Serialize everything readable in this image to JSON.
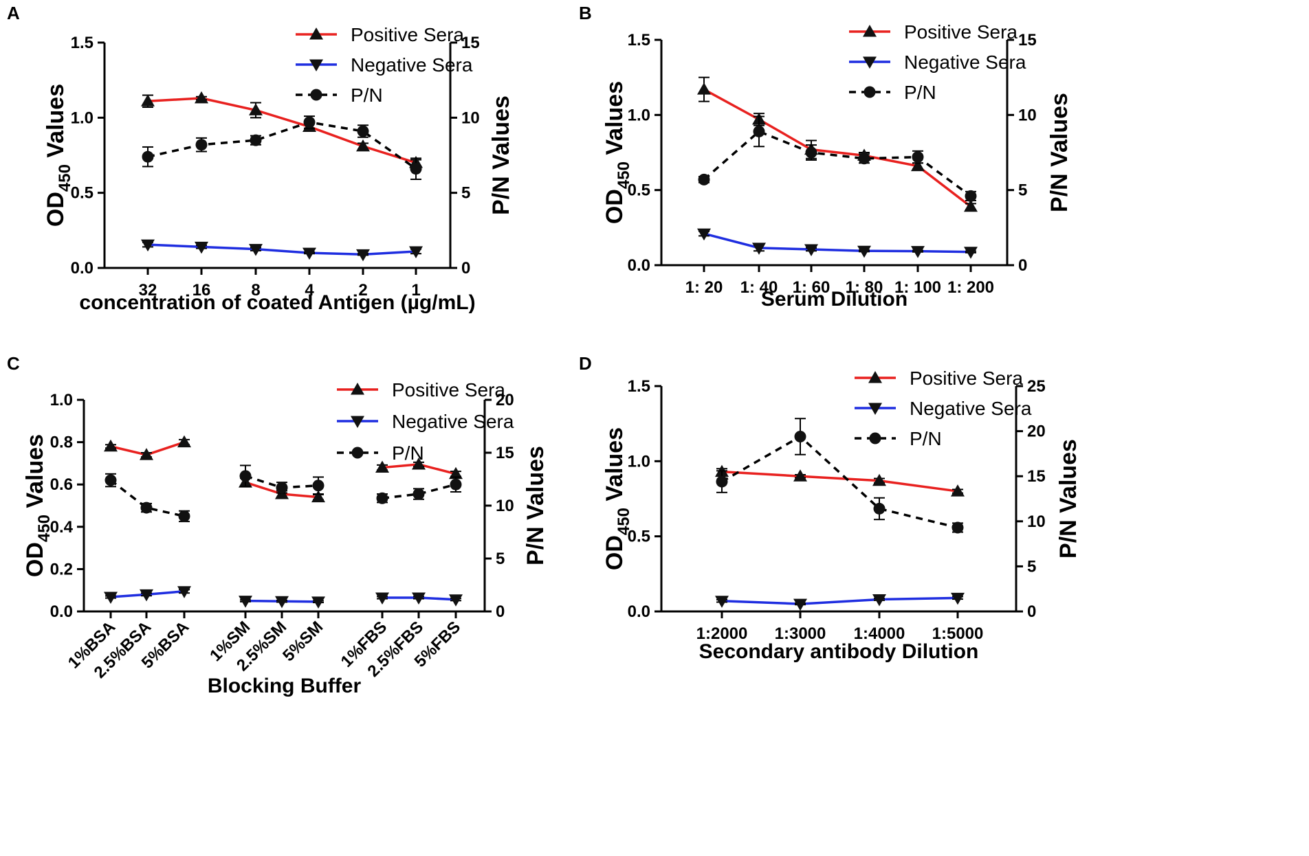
{
  "chart_data": [
    {
      "panel": "A",
      "type": "line",
      "categories": [
        "32",
        "16",
        "8",
        "4",
        "2",
        "1"
      ],
      "xlabel": "concentration of coated Antigen (µg/mL)",
      "ylabel_main": "OD",
      "ylabel_sub": "450",
      "ylabel_suffix": " Values",
      "y2label": "P/N Values",
      "ylim": [
        0,
        1.5
      ],
      "yticks": [
        "0.0",
        "0.5",
        "1.0",
        "1.5"
      ],
      "ytick_values": [
        0,
        0.5,
        1.0,
        1.5
      ],
      "y2lim": [
        0,
        15
      ],
      "y2ticks": [
        "0",
        "5",
        "10",
        "15"
      ],
      "y2tick_values": [
        0,
        5,
        10,
        15
      ],
      "legend_loc": "top-right",
      "series": [
        {
          "name": "Positive Sera",
          "axis": "left",
          "color": "#e8211f",
          "marker": "triangle-up",
          "dashed": false,
          "values": [
            1.11,
            1.13,
            1.05,
            0.94,
            0.81,
            0.7
          ],
          "errors": [
            0.04,
            0.01,
            0.05,
            0.02,
            0.02,
            0.02
          ]
        },
        {
          "name": "Negative Sera",
          "axis": "left",
          "color": "#1f2ee0",
          "marker": "triangle-down",
          "dashed": false,
          "values": [
            0.155,
            0.14,
            0.125,
            0.1,
            0.09,
            0.11
          ],
          "errors": [
            0.015,
            0.01,
            0.01,
            0.005,
            0.005,
            0.015
          ]
        },
        {
          "name": "P/N",
          "axis": "right",
          "color": "#000000",
          "marker": "circle",
          "dashed": true,
          "values": [
            7.4,
            8.2,
            8.5,
            9.7,
            9.1,
            6.6
          ],
          "errors": [
            0.65,
            0.45,
            0.3,
            0.4,
            0.4,
            0.7
          ]
        }
      ]
    },
    {
      "panel": "B",
      "type": "line",
      "categories": [
        "1: 20",
        "1: 40",
        "1: 60",
        "1: 80",
        "1: 100",
        "1: 200"
      ],
      "xlabel": "Serum Dilution",
      "ylabel_main": "OD",
      "ylabel_sub": "450",
      "ylabel_suffix": " Values",
      "y2label": "P/N Values",
      "ylim": [
        0,
        1.5
      ],
      "yticks": [
        "0.0",
        "0.5",
        "1.0",
        "1.5"
      ],
      "ytick_values": [
        0,
        0.5,
        1.0,
        1.5
      ],
      "y2lim": [
        0,
        15
      ],
      "y2ticks": [
        "0",
        "5",
        "10",
        "15"
      ],
      "y2tick_values": [
        0,
        5,
        10,
        15
      ],
      "legend_loc": "top-right",
      "series": [
        {
          "name": "Positive Sera",
          "axis": "left",
          "color": "#e8211f",
          "marker": "triangle-up",
          "dashed": false,
          "values": [
            1.17,
            0.97,
            0.77,
            0.73,
            0.66,
            0.39
          ],
          "errors": [
            0.08,
            0.04,
            0.06,
            0.02,
            0.02,
            0.02
          ]
        },
        {
          "name": "Negative Sera",
          "axis": "left",
          "color": "#1f2ee0",
          "marker": "triangle-down",
          "dashed": false,
          "values": [
            0.21,
            0.115,
            0.105,
            0.095,
            0.093,
            0.088
          ],
          "errors": [
            0.015,
            0.02,
            0.01,
            0.005,
            0.005,
            0.005
          ]
        },
        {
          "name": "P/N",
          "axis": "right",
          "color": "#000000",
          "marker": "circle",
          "dashed": true,
          "values": [
            5.7,
            8.9,
            7.5,
            7.1,
            7.2,
            4.6
          ],
          "errors": [
            0.2,
            1.0,
            0.5,
            0.3,
            0.4,
            0.3
          ]
        }
      ]
    },
    {
      "panel": "C",
      "type": "line",
      "categories": [
        "1%BSA",
        "2.5%BSA",
        "5%BSA",
        "1%SM",
        "2.5%SM",
        "5%SM",
        "1%FBS",
        "2.5%FBS",
        "5%FBS"
      ],
      "groups": [
        [
          0,
          1,
          2
        ],
        [
          3,
          4,
          5
        ],
        [
          6,
          7,
          8
        ]
      ],
      "xlabel": "Blocking Buffer",
      "ylabel_main": "OD",
      "ylabel_sub": "450",
      "ylabel_suffix": " Values",
      "y2label": "P/N Values",
      "ylim": [
        0,
        1.0
      ],
      "yticks": [
        "0.0",
        "0.2",
        "0.4",
        "0.6",
        "0.8",
        "1.0"
      ],
      "ytick_values": [
        0,
        0.2,
        0.4,
        0.6,
        0.8,
        1.0
      ],
      "y2lim": [
        0,
        20
      ],
      "y2ticks": [
        "0",
        "5",
        "10",
        "15",
        "20"
      ],
      "y2tick_values": [
        0,
        5,
        10,
        15,
        20
      ],
      "legend_loc": "top-right",
      "series": [
        {
          "name": "Positive Sera",
          "axis": "left",
          "color": "#e8211f",
          "marker": "triangle-up",
          "dashed": false,
          "values": [
            0.78,
            0.74,
            0.8,
            0.61,
            0.555,
            0.54,
            0.68,
            0.695,
            0.65
          ],
          "errors": [
            0.008,
            0.01,
            0.012,
            0.02,
            0.015,
            0.012,
            0.012,
            0.01,
            0.012
          ]
        },
        {
          "name": "Negative Sera",
          "axis": "left",
          "color": "#1f2ee0",
          "marker": "triangle-down",
          "dashed": false,
          "values": [
            0.068,
            0.08,
            0.095,
            0.05,
            0.048,
            0.046,
            0.065,
            0.065,
            0.056
          ],
          "errors": [
            0.005,
            0.006,
            0.008,
            0.004,
            0.004,
            0.004,
            0.005,
            0.005,
            0.005
          ]
        },
        {
          "name": "P/N",
          "axis": "right",
          "color": "#000000",
          "marker": "circle",
          "dashed": true,
          "values": [
            12.4,
            9.8,
            9.0,
            12.8,
            11.7,
            11.9,
            10.7,
            11.1,
            12.0
          ],
          "errors": [
            0.6,
            0.4,
            0.5,
            1.0,
            0.5,
            0.8,
            0.4,
            0.5,
            0.7
          ]
        }
      ]
    },
    {
      "panel": "D",
      "type": "line",
      "categories": [
        "1:2000",
        "1:3000",
        "1:4000",
        "1:5000"
      ],
      "xlabel": "Secondary antibody Dilution",
      "ylabel_main": "OD",
      "ylabel_sub": "450",
      "ylabel_suffix": " Values",
      "y2label": "P/N Values",
      "ylim": [
        0,
        1.5
      ],
      "yticks": [
        "0.0",
        "0.5",
        "1.0",
        "1.5"
      ],
      "ytick_values": [
        0,
        0.5,
        1.0,
        1.5
      ],
      "y2lim": [
        0,
        25
      ],
      "y2ticks": [
        "0",
        "5",
        "10",
        "15",
        "20",
        "25"
      ],
      "y2tick_values": [
        0,
        5,
        10,
        15,
        20,
        25
      ],
      "legend_loc": "top-right",
      "series": [
        {
          "name": "Positive Sera",
          "axis": "left",
          "color": "#e8211f",
          "marker": "triangle-up",
          "dashed": false,
          "values": [
            0.93,
            0.9,
            0.87,
            0.8
          ],
          "errors": [
            0.02,
            0.01,
            0.015,
            0.012
          ]
        },
        {
          "name": "Negative Sera",
          "axis": "left",
          "color": "#1f2ee0",
          "marker": "triangle-down",
          "dashed": false,
          "values": [
            0.07,
            0.05,
            0.08,
            0.09
          ],
          "errors": [
            0.008,
            0.005,
            0.006,
            0.008
          ]
        },
        {
          "name": "P/N",
          "axis": "right",
          "color": "#000000",
          "marker": "circle",
          "dashed": true,
          "values": [
            14.4,
            19.4,
            11.4,
            9.3
          ],
          "errors": [
            1.2,
            2.0,
            1.2,
            0.5
          ]
        }
      ]
    }
  ]
}
